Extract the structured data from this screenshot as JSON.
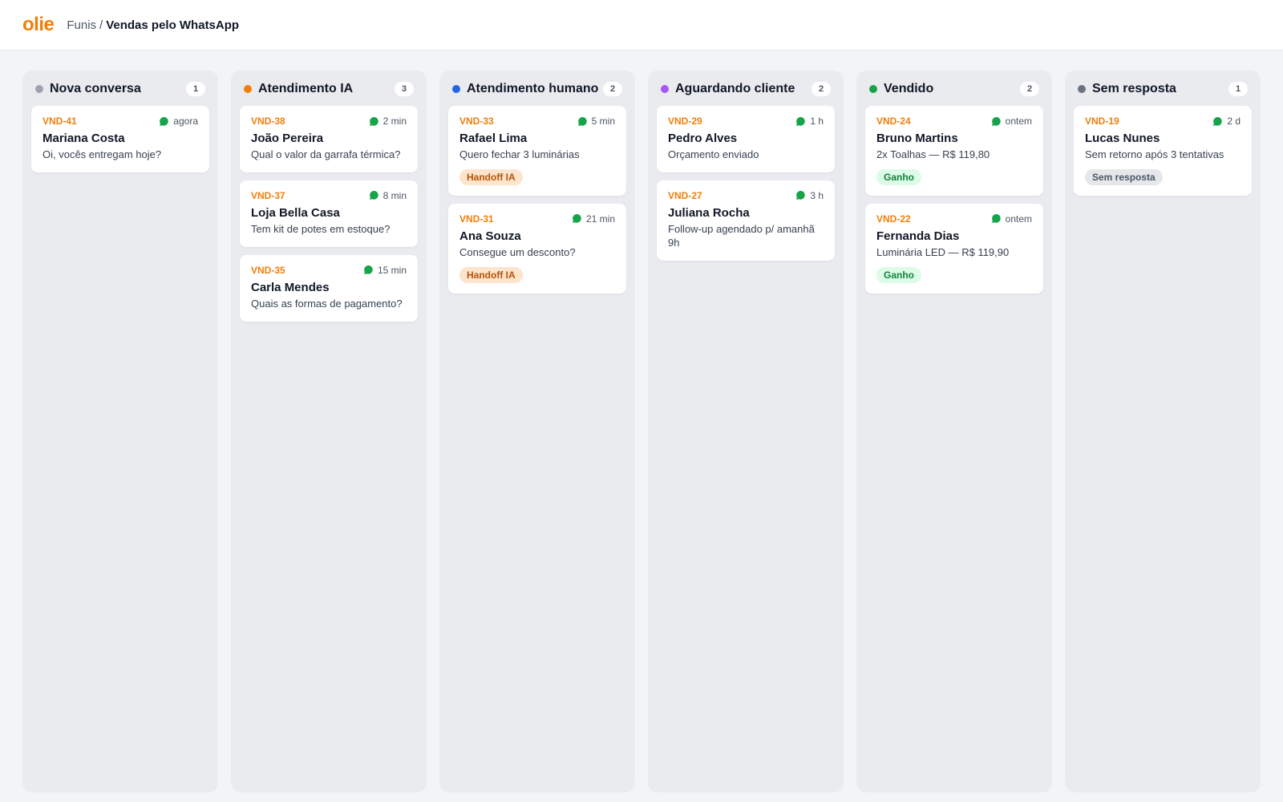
{
  "app": {
    "logo": "olie"
  },
  "breadcrumb": {
    "parent": "Funis",
    "separator": "/",
    "current": "Vendas pelo WhatsApp"
  },
  "colors": {
    "accent": "#f07f0a",
    "whatsapp": "#16a34a"
  },
  "columns": [
    {
      "title": "Nova conversa",
      "count": "1",
      "dot_color": "#9ca3af",
      "cards": [
        {
          "id": "VND-41",
          "time": "agora",
          "name": "Mariana Costa",
          "message": "Oi, vocês entregam hoje?",
          "tag": ""
        }
      ]
    },
    {
      "title": "Atendimento IA",
      "count": "3",
      "dot_color": "#f07f0a",
      "cards": [
        {
          "id": "VND-38",
          "time": "2 min",
          "name": "João Pereira",
          "message": "Qual o valor da garrafa térmica?",
          "tag": ""
        },
        {
          "id": "VND-37",
          "time": "8 min",
          "name": "Loja Bella Casa",
          "message": "Tem kit de potes em estoque?",
          "tag": ""
        },
        {
          "id": "VND-35",
          "time": "15 min",
          "name": "Carla Mendes",
          "message": "Quais as formas de pagamento?",
          "tag": ""
        }
      ]
    },
    {
      "title": "Atendimento humano",
      "count": "2",
      "dot_color": "#2563eb",
      "cards": [
        {
          "id": "VND-33",
          "time": "5 min",
          "name": "Rafael Lima",
          "message": "Quero fechar 3 luminárias",
          "tag": "Handoff IA",
          "tag_style": "handoff"
        },
        {
          "id": "VND-31",
          "time": "21 min",
          "name": "Ana Souza",
          "message": "Consegue um desconto?",
          "tag": "Handoff IA",
          "tag_style": "handoff"
        }
      ]
    },
    {
      "title": "Aguardando cliente",
      "count": "2",
      "dot_color": "#a855f7",
      "cards": [
        {
          "id": "VND-29",
          "time": "1 h",
          "name": "Pedro Alves",
          "message": "Orçamento enviado",
          "tag": ""
        },
        {
          "id": "VND-27",
          "time": "3 h",
          "name": "Juliana Rocha",
          "message": "Follow-up agendado p/ amanhã 9h",
          "tag": ""
        }
      ]
    },
    {
      "title": "Vendido",
      "count": "2",
      "dot_color": "#16a34a",
      "cards": [
        {
          "id": "VND-24",
          "time": "ontem",
          "name": "Bruno Martins",
          "message": "2x Toalhas — R$ 119,80",
          "tag": "Ganho",
          "tag_style": "won"
        },
        {
          "id": "VND-22",
          "time": "ontem",
          "name": "Fernanda Dias",
          "message": "Luminária LED — R$ 119,90",
          "tag": "Ganho",
          "tag_style": "won"
        }
      ]
    },
    {
      "title": "Sem resposta",
      "count": "1",
      "dot_color": "#6b7280",
      "cards": [
        {
          "id": "VND-19",
          "time": "2 d",
          "name": "Lucas Nunes",
          "message": "Sem retorno após 3 tentativas",
          "tag": "Sem resposta",
          "tag_style": "none"
        }
      ]
    }
  ]
}
